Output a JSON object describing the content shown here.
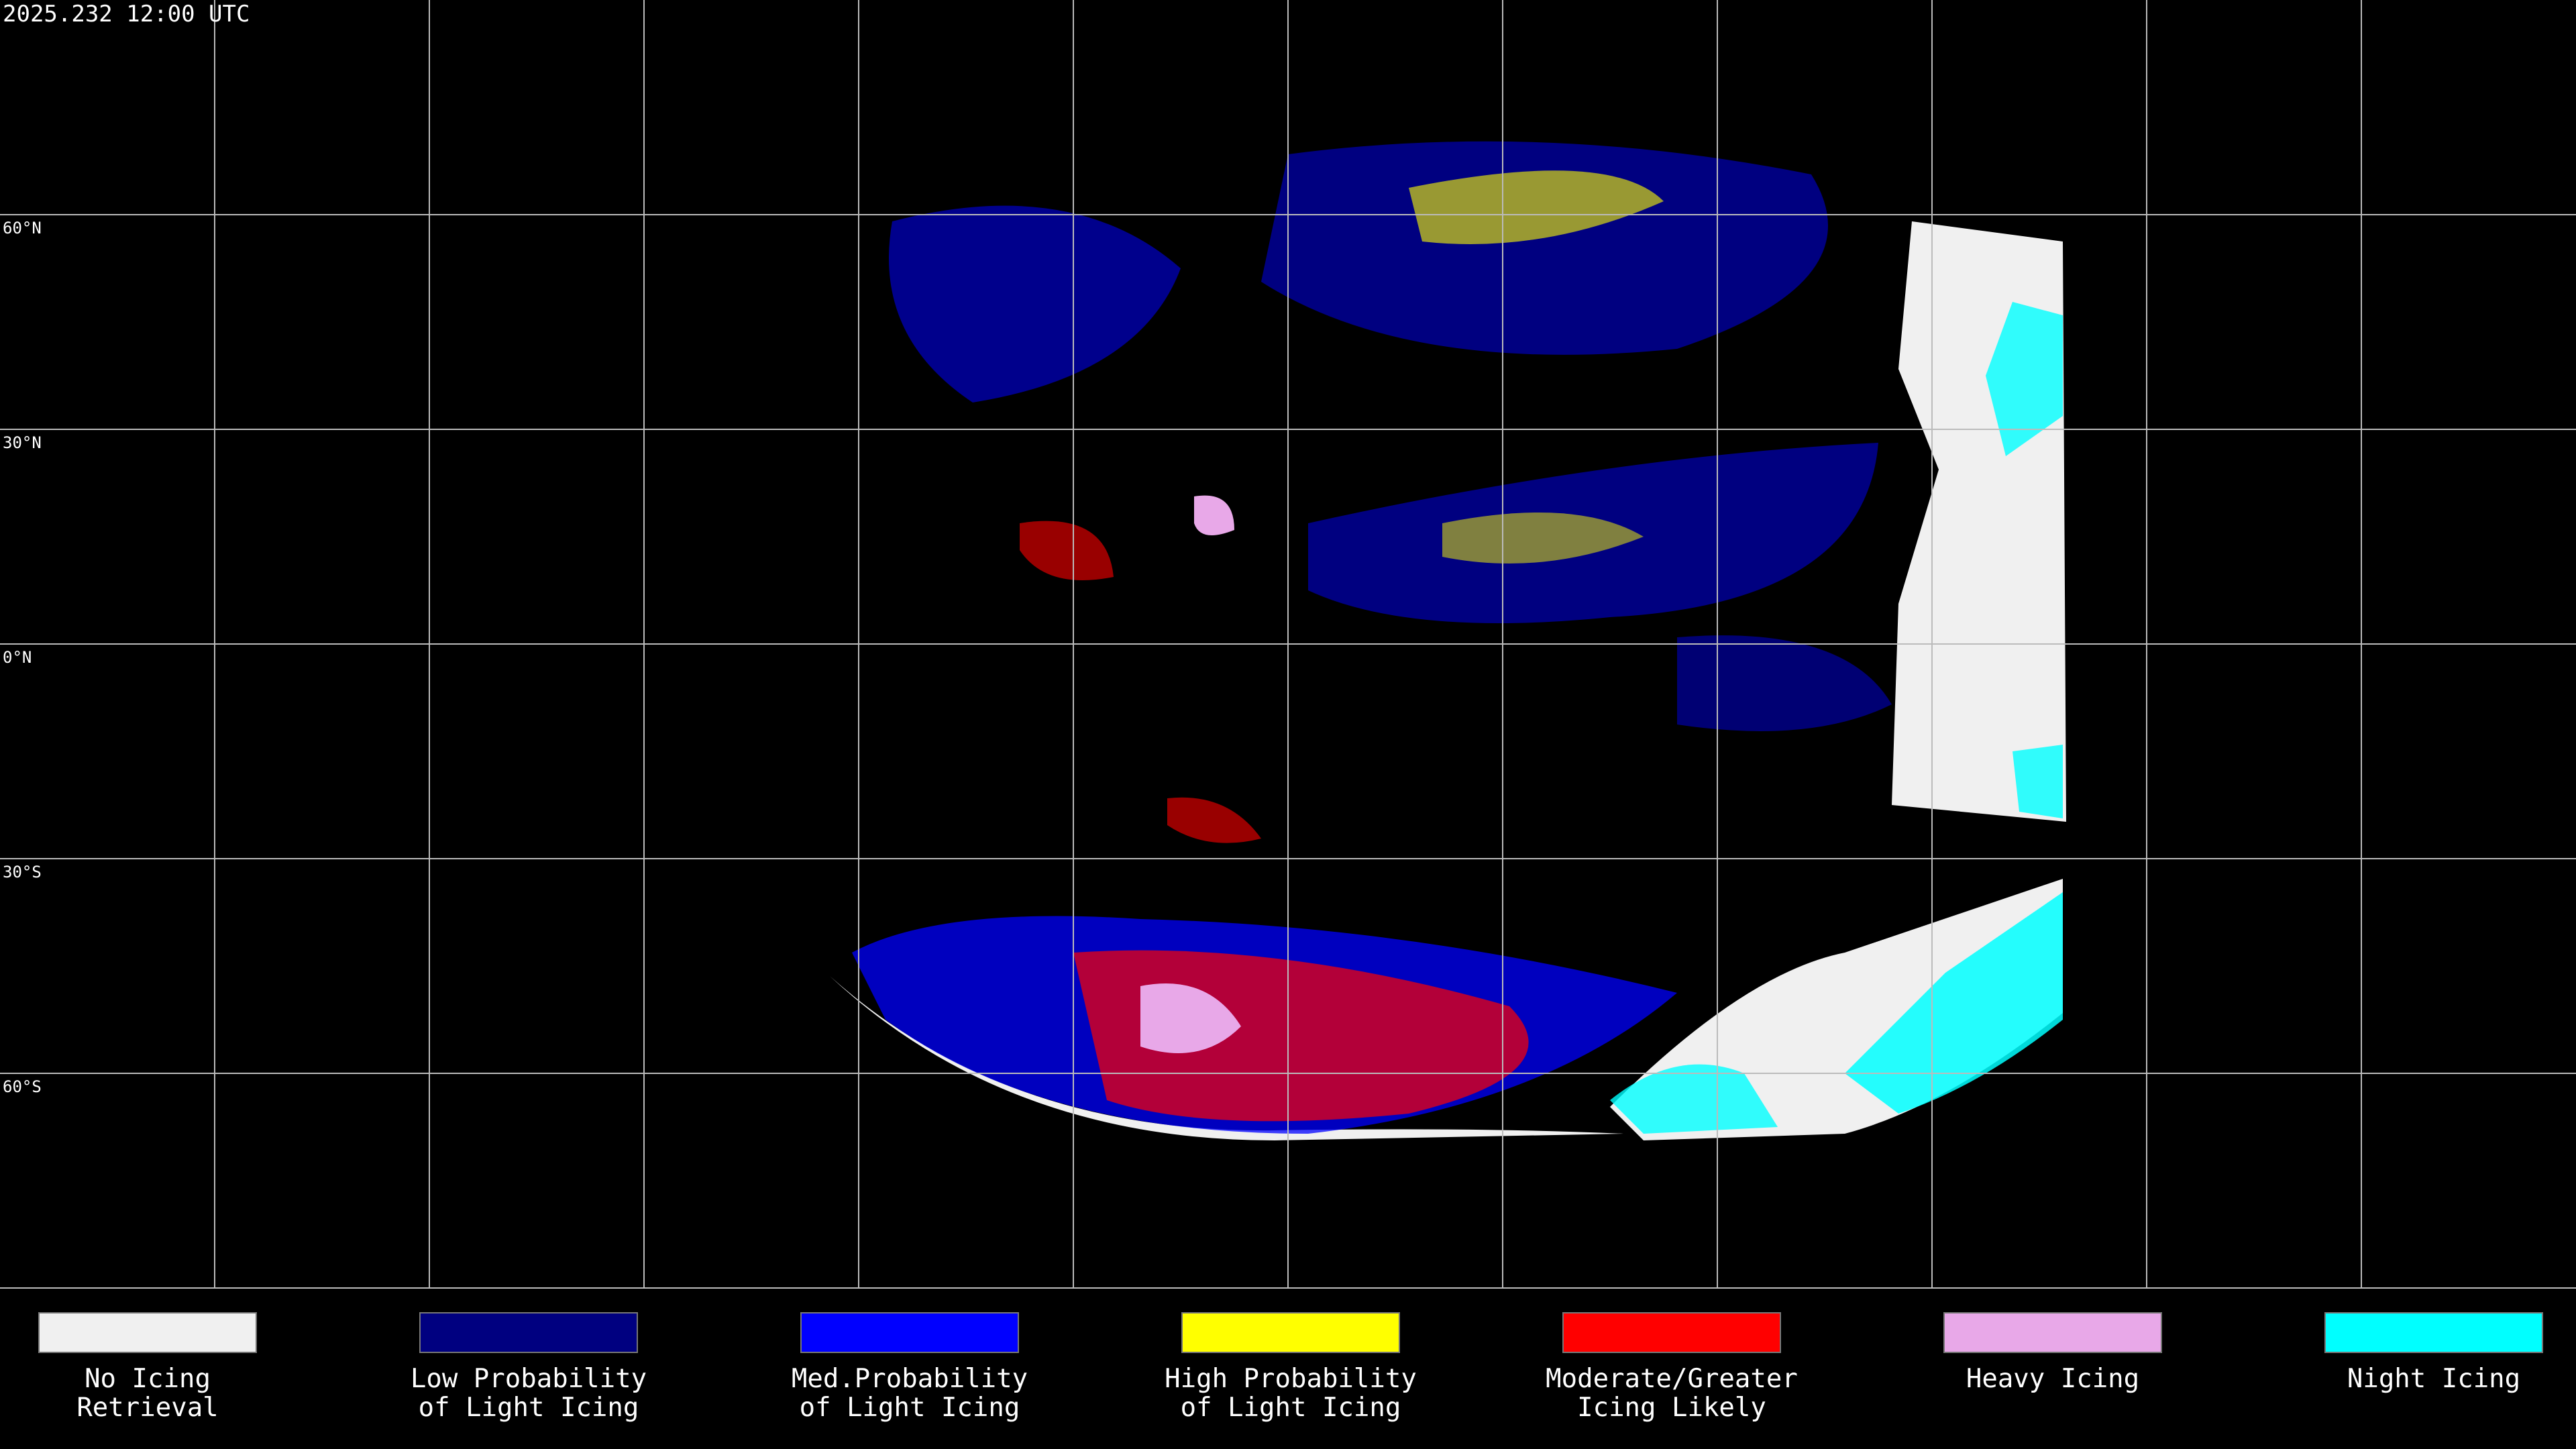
{
  "header": {
    "title": "2025.232 12:00 UTC"
  },
  "latitude_labels": [
    "60°N",
    "30°N",
    "0°N",
    "30°S",
    "60°S"
  ],
  "legend": [
    {
      "lines": [
        "No Icing",
        "Retrieval"
      ],
      "color": "#f0f0f0"
    },
    {
      "lines": [
        "Low Probability",
        "of Light Icing"
      ],
      "color": "#000080"
    },
    {
      "lines": [
        "Med.Probability",
        "of Light Icing"
      ],
      "color": "#0000ff"
    },
    {
      "lines": [
        "High Probability",
        "of Light Icing"
      ],
      "color": "#ffff00"
    },
    {
      "lines": [
        "Moderate/Greater",
        "Icing Likely"
      ],
      "color": "#ff0000"
    },
    {
      "lines": [
        "Heavy Icing"
      ],
      "color": "#e8a8e8"
    },
    {
      "lines": [
        "Night Icing"
      ],
      "color": "#00ffff"
    }
  ]
}
